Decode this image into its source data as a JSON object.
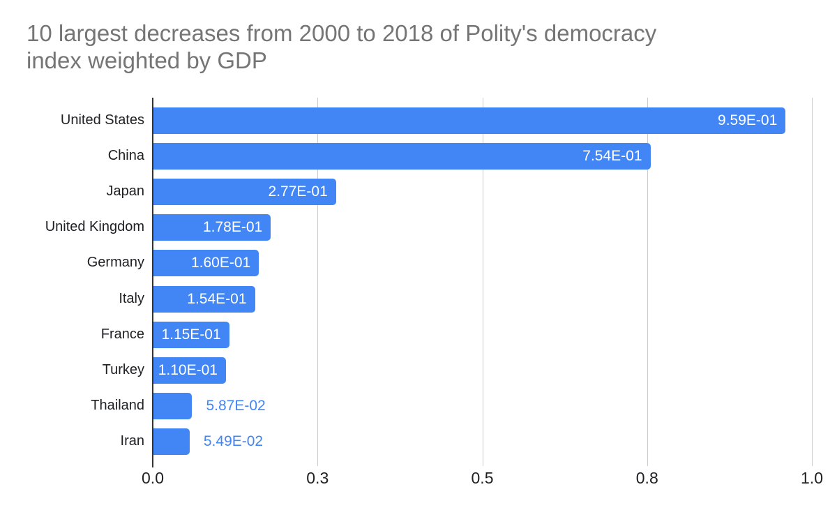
{
  "header": {
    "title_line1": "10 largest decreases from 2000 to 2018 of Polity's democracy",
    "title_line2": "index weighted by GDP"
  },
  "chart_data": {
    "type": "bar",
    "orientation": "horizontal",
    "title": "10 largest decreases from 2000 to 2018 of Polity's democracy index weighted by GDP",
    "categories": [
      "United States",
      "China",
      "Japan",
      "United Kingdom",
      "Germany",
      "Italy",
      "France",
      "Turkey",
      "Thailand",
      "Iran"
    ],
    "values": [
      0.959,
      0.754,
      0.277,
      0.178,
      0.16,
      0.154,
      0.115,
      0.11,
      0.0587,
      0.0549
    ],
    "value_labels": [
      "9.59E-01",
      "7.54E-01",
      "2.77E-01",
      "1.78E-01",
      "1.60E-01",
      "1.54E-01",
      "1.15E-01",
      "1.10E-01",
      "5.87E-02",
      "5.49E-02"
    ],
    "label_positions": [
      "inside",
      "inside",
      "inside",
      "inside",
      "inside",
      "inside",
      "inside",
      "inside",
      "outside",
      "outside"
    ],
    "xlabel": "",
    "ylabel": "",
    "xlim": [
      0,
      1
    ],
    "x_ticks": [
      {
        "value": 0.0,
        "label": "0.0"
      },
      {
        "value": 0.25,
        "label": "0.3"
      },
      {
        "value": 0.5,
        "label": "0.5"
      },
      {
        "value": 0.75,
        "label": "0.8"
      },
      {
        "value": 1.0,
        "label": "1.0"
      }
    ],
    "grid": true,
    "legend": "none",
    "colors": {
      "bar": "#4285F4",
      "value_label_inside": "#ffffff",
      "value_label_outside": "#4285F4",
      "gridline": "#cccccc",
      "axis_line": "#333333",
      "tick_label": "#202124",
      "category_label": "#202124",
      "title": "#757575",
      "background": "#ffffff"
    }
  }
}
